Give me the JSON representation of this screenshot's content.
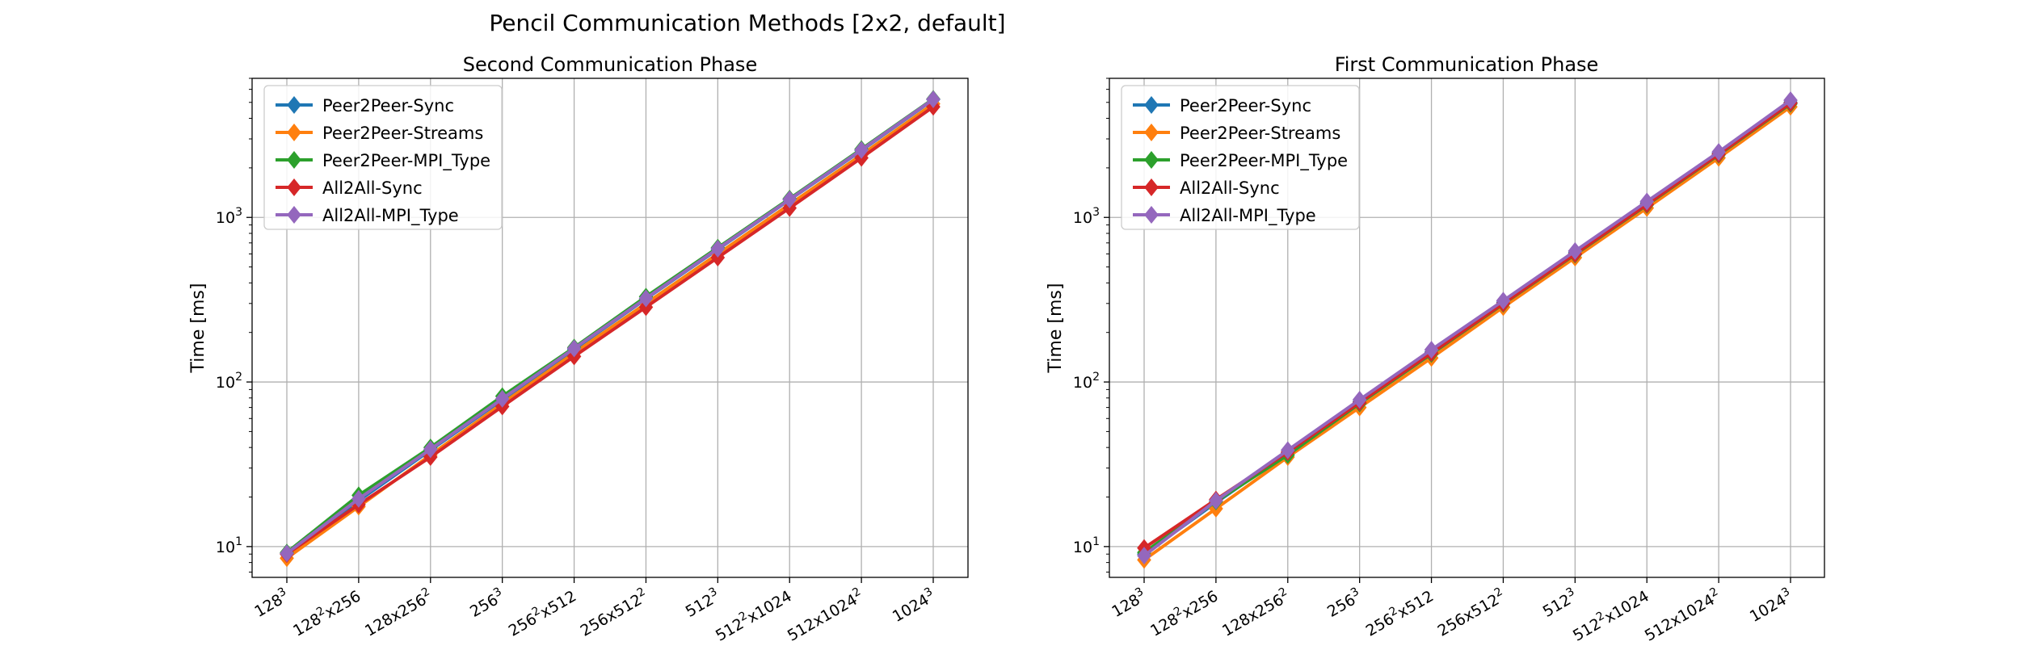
{
  "suptitle": "Pencil Communication Methods [2x2, default]",
  "chart_data": [
    {
      "type": "line",
      "title": "Second Communication Phase",
      "xlabel": "",
      "ylabel": "Time [ms]",
      "yscale": "log",
      "ylim": [
        6.5,
        7000
      ],
      "grid": true,
      "legend_position": "upper left",
      "categories": [
        "128^3",
        "128^2x256",
        "128x256^2",
        "256^3",
        "256^2x512",
        "256x512^2",
        "512^3",
        "512^2x1024",
        "512x1024^2",
        "1024^3"
      ],
      "series": [
        {
          "name": "Peer2Peer-Sync",
          "color": "#1f77b4",
          "values": [
            9.1,
            19.0,
            38.5,
            78,
            158,
            320,
            640,
            1280,
            2550,
            5200
          ]
        },
        {
          "name": "Peer2Peer-Streams",
          "color": "#ff7f0e",
          "values": [
            8.5,
            17.5,
            36,
            74,
            150,
            300,
            600,
            1200,
            2400,
            4900
          ]
        },
        {
          "name": "Peer2Peer-MPI_Type",
          "color": "#2ca02c",
          "values": [
            9.2,
            20.5,
            40,
            82,
            162,
            330,
            655,
            1300,
            2600,
            5250
          ]
        },
        {
          "name": "All2All-Sync",
          "color": "#d62728",
          "values": [
            9.0,
            18.0,
            35,
            71,
            143,
            285,
            570,
            1140,
            2300,
            4700
          ]
        },
        {
          "name": "All2All-MPI_Type",
          "color": "#9467bd",
          "values": [
            9.1,
            19.5,
            39,
            79,
            160,
            322,
            645,
            1285,
            2570,
            5220
          ]
        }
      ]
    },
    {
      "type": "line",
      "title": "First Communication Phase",
      "xlabel": "",
      "ylabel": "Time [ms]",
      "yscale": "log",
      "ylim": [
        6.5,
        7000
      ],
      "grid": true,
      "legend_position": "upper left",
      "categories": [
        "128^3",
        "128^2x256",
        "128x256^2",
        "256^3",
        "256^2x512",
        "256x512^2",
        "512^3",
        "512^2x1024",
        "512x1024^2",
        "1024^3"
      ],
      "series": [
        {
          "name": "Peer2Peer-Sync",
          "color": "#1f77b4",
          "values": [
            9.0,
            18.5,
            37,
            76,
            152,
            305,
            610,
            1220,
            2450,
            5000
          ]
        },
        {
          "name": "Peer2Peer-Streams",
          "color": "#ff7f0e",
          "values": [
            8.3,
            17.0,
            35,
            70,
            140,
            285,
            570,
            1140,
            2300,
            4700
          ]
        },
        {
          "name": "Peer2Peer-MPI_Type",
          "color": "#2ca02c",
          "values": [
            9.2,
            18.8,
            36,
            74,
            148,
            298,
            595,
            1190,
            2400,
            4900
          ]
        },
        {
          "name": "All2All-Sync",
          "color": "#d62728",
          "values": [
            9.8,
            19.3,
            37.5,
            75,
            150,
            300,
            600,
            1200,
            2420,
            4950
          ]
        },
        {
          "name": "All2All-MPI_Type",
          "color": "#9467bd",
          "values": [
            8.8,
            19.0,
            38.5,
            78,
            157,
            312,
            625,
            1250,
            2500,
            5150
          ]
        }
      ]
    }
  ]
}
